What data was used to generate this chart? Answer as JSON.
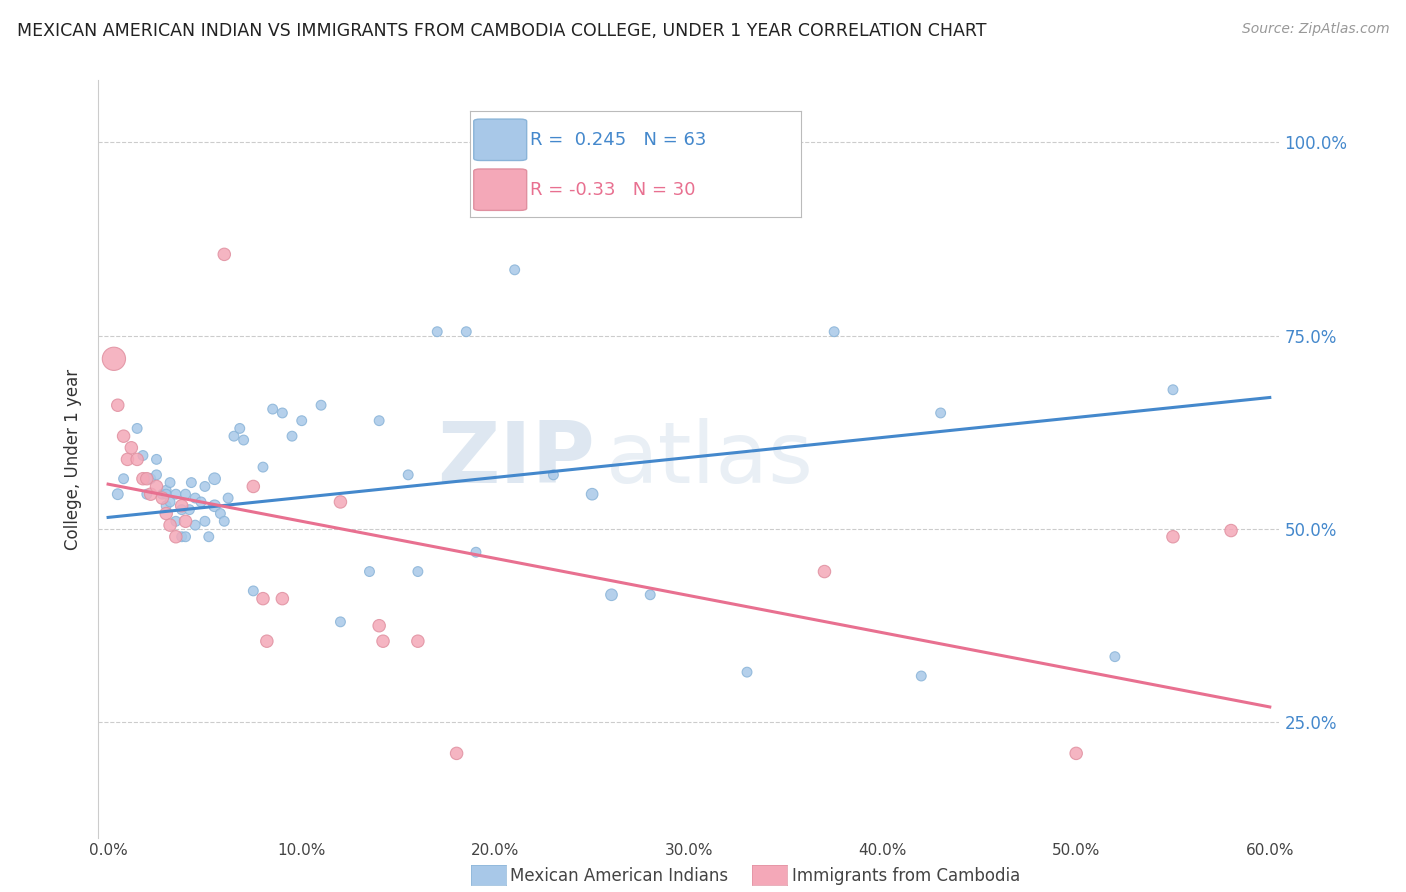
{
  "title": "MEXICAN AMERICAN INDIAN VS IMMIGRANTS FROM CAMBODIA COLLEGE, UNDER 1 YEAR CORRELATION CHART",
  "source": "Source: ZipAtlas.com",
  "ylabel": "College, Under 1 year",
  "xlabel": "",
  "xlim": [
    -0.005,
    0.605
  ],
  "ylim": [
    0.1,
    1.08
  ],
  "xtick_labels": [
    "0.0%",
    "",
    "10.0%",
    "",
    "20.0%",
    "",
    "30.0%",
    "",
    "40.0%",
    "",
    "50.0%",
    "",
    "60.0%"
  ],
  "xtick_values": [
    0.0,
    0.05,
    0.1,
    0.15,
    0.2,
    0.25,
    0.3,
    0.35,
    0.4,
    0.45,
    0.5,
    0.55,
    0.6
  ],
  "xtick_show_labels": [
    "0.0%",
    "10.0%",
    "20.0%",
    "30.0%",
    "40.0%",
    "50.0%",
    "60.0%"
  ],
  "xtick_show_values": [
    0.0,
    0.1,
    0.2,
    0.3,
    0.4,
    0.5,
    0.6
  ],
  "ytick_labels": [
    "100.0%",
    "75.0%",
    "50.0%",
    "25.0%"
  ],
  "ytick_values": [
    1.0,
    0.75,
    0.5,
    0.25
  ],
  "blue_R": 0.245,
  "blue_N": 63,
  "pink_R": -0.33,
  "pink_N": 30,
  "blue_color": "#a8c8e8",
  "pink_color": "#f4a8b8",
  "blue_line_color": "#4488cc",
  "pink_line_color": "#e87090",
  "blue_line_x0": 0.0,
  "blue_line_y0": 0.515,
  "blue_line_x1": 0.6,
  "blue_line_y1": 0.67,
  "pink_line_x0": 0.0,
  "pink_line_y0": 0.558,
  "pink_line_x1": 0.6,
  "pink_line_y1": 0.27,
  "watermark_zip": "ZIP",
  "watermark_atlas": "atlas",
  "legend_label_blue": "Mexican American Indians",
  "legend_label_pink": "Immigrants from Cambodia",
  "blue_x": [
    0.005,
    0.008,
    0.015,
    0.018,
    0.02,
    0.02,
    0.022,
    0.025,
    0.025,
    0.028,
    0.03,
    0.03,
    0.03,
    0.032,
    0.032,
    0.035,
    0.035,
    0.038,
    0.038,
    0.04,
    0.04,
    0.042,
    0.043,
    0.045,
    0.045,
    0.048,
    0.05,
    0.05,
    0.052,
    0.055,
    0.055,
    0.058,
    0.06,
    0.062,
    0.065,
    0.068,
    0.07,
    0.075,
    0.08,
    0.085,
    0.09,
    0.095,
    0.1,
    0.11,
    0.12,
    0.135,
    0.14,
    0.155,
    0.16,
    0.17,
    0.185,
    0.19,
    0.21,
    0.23,
    0.25,
    0.26,
    0.28,
    0.33,
    0.375,
    0.42,
    0.43,
    0.52,
    0.55
  ],
  "blue_y": [
    0.545,
    0.565,
    0.63,
    0.595,
    0.565,
    0.545,
    0.565,
    0.59,
    0.57,
    0.545,
    0.55,
    0.545,
    0.53,
    0.56,
    0.535,
    0.545,
    0.51,
    0.525,
    0.49,
    0.545,
    0.49,
    0.525,
    0.56,
    0.54,
    0.505,
    0.535,
    0.555,
    0.51,
    0.49,
    0.565,
    0.53,
    0.52,
    0.51,
    0.54,
    0.62,
    0.63,
    0.615,
    0.42,
    0.58,
    0.655,
    0.65,
    0.62,
    0.64,
    0.66,
    0.38,
    0.445,
    0.64,
    0.57,
    0.445,
    0.755,
    0.755,
    0.47,
    0.835,
    0.57,
    0.545,
    0.415,
    0.415,
    0.315,
    0.755,
    0.31,
    0.65,
    0.335,
    0.68
  ],
  "pink_x": [
    0.003,
    0.005,
    0.008,
    0.01,
    0.012,
    0.015,
    0.018,
    0.02,
    0.022,
    0.025,
    0.028,
    0.03,
    0.032,
    0.035,
    0.038,
    0.04,
    0.06,
    0.075,
    0.08,
    0.082,
    0.09,
    0.12,
    0.14,
    0.142,
    0.16,
    0.18,
    0.37,
    0.5,
    0.55,
    0.58
  ],
  "pink_y": [
    0.72,
    0.66,
    0.62,
    0.59,
    0.605,
    0.59,
    0.565,
    0.565,
    0.545,
    0.555,
    0.54,
    0.52,
    0.505,
    0.49,
    0.53,
    0.51,
    0.855,
    0.555,
    0.41,
    0.355,
    0.41,
    0.535,
    0.375,
    0.355,
    0.355,
    0.21,
    0.445,
    0.21,
    0.49,
    0.498
  ],
  "blue_sizes": [
    60,
    50,
    50,
    50,
    50,
    50,
    50,
    50,
    50,
    50,
    50,
    50,
    50,
    50,
    50,
    50,
    50,
    50,
    50,
    50,
    50,
    50,
    50,
    50,
    50,
    50,
    50,
    50,
    50,
    70,
    70,
    50,
    50,
    50,
    50,
    50,
    50,
    50,
    50,
    50,
    50,
    50,
    50,
    50,
    50,
    50,
    50,
    50,
    50,
    50,
    50,
    50,
    50,
    50,
    70,
    70,
    50,
    50,
    50,
    50,
    50,
    50,
    50
  ],
  "pink_sizes": [
    280,
    80,
    80,
    80,
    80,
    80,
    80,
    80,
    80,
    80,
    80,
    80,
    80,
    80,
    80,
    80,
    80,
    80,
    80,
    80,
    80,
    80,
    80,
    80,
    80,
    80,
    80,
    80,
    80,
    80
  ]
}
